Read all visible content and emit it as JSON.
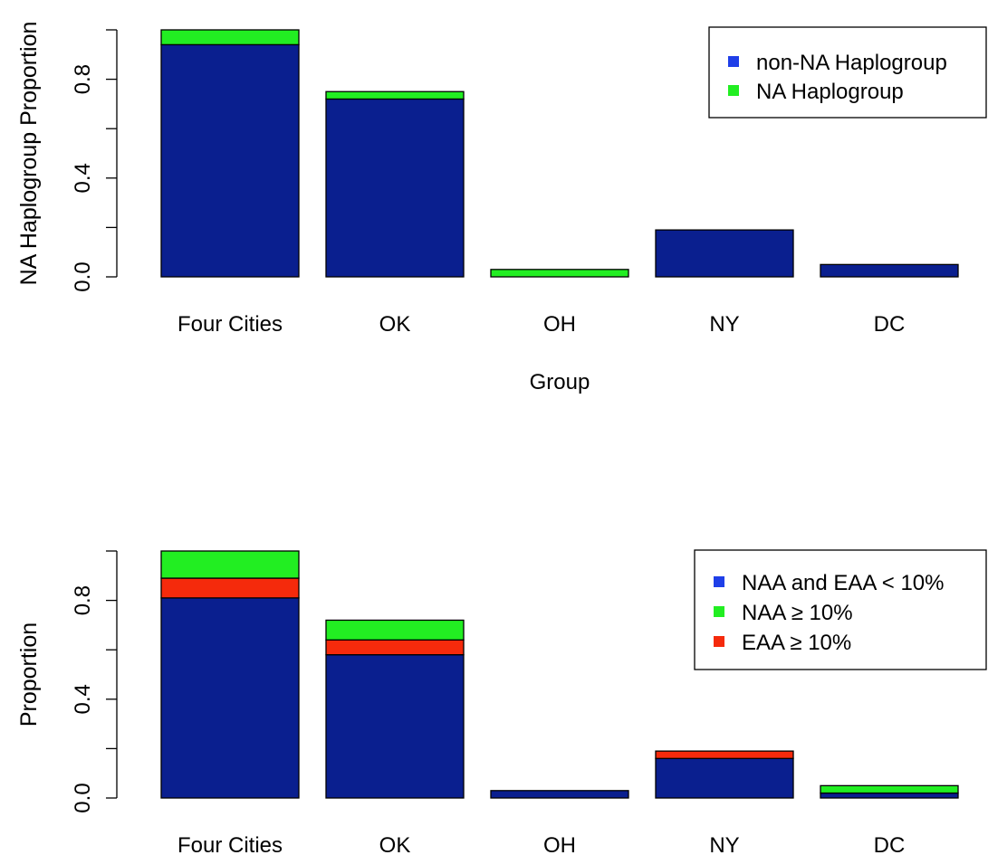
{
  "chart_data": [
    {
      "type": "bar",
      "stacked": true,
      "categories": [
        "Four Cities",
        "OK",
        "OH",
        "NY",
        "DC"
      ],
      "series": [
        {
          "name": "non-NA Haplogroup",
          "values": [
            0.94,
            0.72,
            0.0,
            0.19,
            0.05
          ],
          "color": "#0a1f8f"
        },
        {
          "name": "NA Haplogroup",
          "values": [
            0.06,
            0.03,
            0.03,
            0.0,
            0.0
          ],
          "color": "#22ee22"
        }
      ],
      "legend_swatch_colors": [
        "#1f3fe8",
        "#22ee22"
      ],
      "xlabel": "Group",
      "ylabel": "NA Haplogroup Proportion",
      "ylim": [
        0,
        1
      ],
      "yticks": [
        "0.0",
        "0.4",
        "0.8"
      ],
      "grid": false,
      "legend_position": "top-right"
    },
    {
      "type": "bar",
      "stacked": true,
      "categories": [
        "Four Cities",
        "OK",
        "OH",
        "NY",
        "DC"
      ],
      "series": [
        {
          "name": "NAA and EAA < 10%",
          "values": [
            0.81,
            0.58,
            0.03,
            0.16,
            0.02
          ],
          "color": "#0a1f8f"
        },
        {
          "name": "EAA ≥ 10%",
          "values": [
            0.08,
            0.06,
            0.0,
            0.03,
            0.0
          ],
          "color": "#f52a0c"
        },
        {
          "name": "NAA ≥ 10%",
          "values": [
            0.11,
            0.08,
            0.0,
            0.0,
            0.03
          ],
          "color": "#22ee22"
        }
      ],
      "legend_order": [
        "NAA and EAA < 10%",
        "NAA ≥ 10%",
        "EAA ≥ 10%"
      ],
      "legend_swatch_colors": [
        "#1f3fe8",
        "#22ee22",
        "#f52a0c"
      ],
      "xlabel": "",
      "ylabel": "Proportion",
      "ylim": [
        0,
        1
      ],
      "yticks": [
        "0.0",
        "0.4",
        "0.8"
      ],
      "grid": false,
      "legend_position": "top-right"
    }
  ]
}
